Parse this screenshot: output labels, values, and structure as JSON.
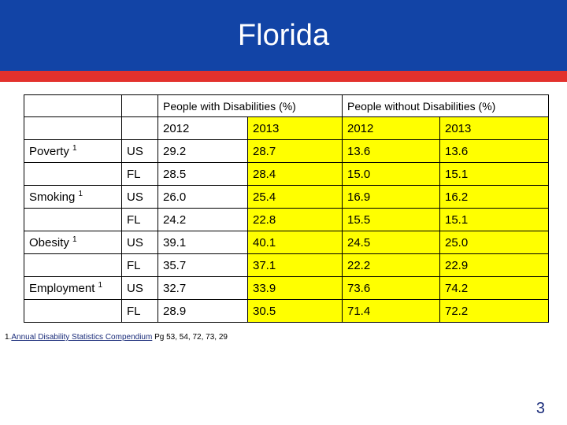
{
  "slide": {
    "title": "Florida",
    "page_number": "3"
  },
  "table": {
    "group_headers": [
      "People with Disabilities (%)",
      "People without Disabilities (%)"
    ],
    "years": [
      "2012",
      "2013",
      "2012",
      "2013"
    ],
    "categories": [
      {
        "label": "Poverty",
        "note": "1"
      },
      {
        "label": "Smoking",
        "note": "1"
      },
      {
        "label": "Obesity",
        "note": "1"
      },
      {
        "label": "Employment",
        "note": "1"
      }
    ],
    "rows": [
      {
        "region": "US",
        "values": [
          "29.2",
          "28.7",
          "13.6",
          "13.6"
        ]
      },
      {
        "region": "FL",
        "values": [
          "28.5",
          "28.4",
          "15.0",
          "15.1"
        ]
      },
      {
        "region": "US",
        "values": [
          "26.0",
          "25.4",
          "16.9",
          "16.2"
        ]
      },
      {
        "region": "FL",
        "values": [
          "24.2",
          "22.8",
          "15.5",
          "15.1"
        ]
      },
      {
        "region": "US",
        "values": [
          "39.1",
          "40.1",
          "24.5",
          "25.0"
        ]
      },
      {
        "region": "FL",
        "values": [
          "35.7",
          "37.1",
          "22.2",
          "22.9"
        ]
      },
      {
        "region": "US",
        "values": [
          "32.7",
          "33.9",
          "73.6",
          "74.2"
        ]
      },
      {
        "region": "FL",
        "values": [
          "28.9",
          "30.5",
          "71.4",
          "72.2"
        ]
      }
    ]
  },
  "footnote": {
    "number": "1.",
    "link_text": "Annual Disability Statistics Compendium",
    "pages": " Pg 53, 54, 72, 73, 29"
  },
  "colors": {
    "header_blue": "#1244a6",
    "stripe_red": "#e3312d",
    "highlight_yellow": "#ffff00"
  }
}
